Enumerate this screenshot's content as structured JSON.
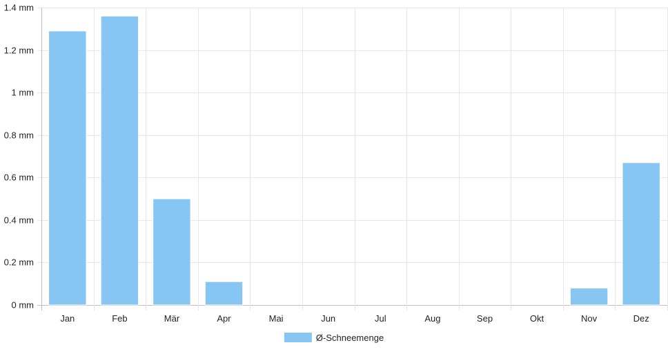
{
  "chart_data": {
    "type": "bar",
    "categories": [
      "Jan",
      "Feb",
      "Mär",
      "Apr",
      "Mai",
      "Jun",
      "Jul",
      "Aug",
      "Sep",
      "Okt",
      "Nov",
      "Dez"
    ],
    "series": [
      {
        "name": "Ø-Schneemenge",
        "values": [
          1.29,
          1.36,
          0.5,
          0.11,
          0,
          0,
          0,
          0,
          0,
          0,
          0.08,
          0.67
        ],
        "color": "#87c6f2"
      }
    ],
    "y_ticks": [
      0,
      0.2,
      0.4,
      0.6,
      0.8,
      1,
      1.2,
      1.4
    ],
    "y_tick_labels": [
      "0 mm",
      "0.2 mm",
      "0.4 mm",
      "0.6 mm",
      "0.8 mm",
      "1 mm",
      "1.2 mm",
      "1.4 mm"
    ],
    "ylim": [
      0,
      1.4
    ],
    "grid": true,
    "legend_position": "bottom-center",
    "colors": {
      "grid": "#e6e6e6",
      "axis": "#bfbfbf"
    }
  }
}
